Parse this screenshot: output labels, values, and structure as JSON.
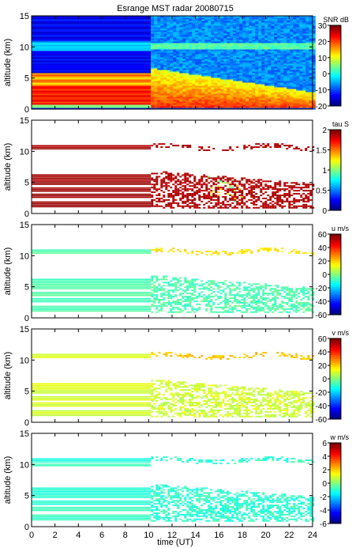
{
  "title": "Esrange MST radar 20080715",
  "x_axis": {
    "label": "time (UT)",
    "ticks": [
      "0",
      "2",
      "4",
      "6",
      "8",
      "10",
      "12",
      "14",
      "16",
      "18",
      "20",
      "22",
      "24"
    ]
  },
  "chart_data": [
    {
      "type": "heatmap",
      "title": "Esrange MST radar 20080715",
      "xlabel": "",
      "ylabel": "altitude (km)",
      "xlim": [
        0,
        24
      ],
      "ylim": [
        0,
        15
      ],
      "yticks": [
        "0",
        "5",
        "10",
        "15"
      ],
      "colorbar": {
        "label": "SNR dB",
        "range": [
          -20,
          30
        ],
        "ticks": [
          "-20",
          "-10",
          "0",
          "10",
          "20",
          "30"
        ]
      },
      "gap_at_hour": 10.2
    },
    {
      "type": "heatmap",
      "xlabel": "",
      "ylabel": "altitude (km)",
      "xlim": [
        0,
        24
      ],
      "ylim": [
        0,
        15
      ],
      "yticks": [
        "0",
        "5",
        "10",
        "15"
      ],
      "colorbar": {
        "label": "tau S",
        "range": [
          0,
          2
        ],
        "ticks": [
          "0",
          "0.5",
          "1",
          "1.5",
          "2"
        ]
      },
      "gap_at_hour": 10.2
    },
    {
      "type": "heatmap",
      "xlabel": "",
      "ylabel": "altitude (km)",
      "xlim": [
        0,
        24
      ],
      "ylim": [
        0,
        15
      ],
      "yticks": [
        "0",
        "5",
        "10",
        "15"
      ],
      "colorbar": {
        "label": "u m/s",
        "range": [
          -60,
          60
        ],
        "ticks": [
          "-60",
          "-40",
          "-20",
          "0",
          "20",
          "40",
          "60"
        ]
      },
      "gap_at_hour": 10.2
    },
    {
      "type": "heatmap",
      "xlabel": "",
      "ylabel": "altitude (km)",
      "xlim": [
        0,
        24
      ],
      "ylim": [
        0,
        15
      ],
      "yticks": [
        "0",
        "5",
        "10",
        "15"
      ],
      "colorbar": {
        "label": "v m/s",
        "range": [
          -60,
          60
        ],
        "ticks": [
          "-60",
          "-40",
          "-20",
          "0",
          "20",
          "40",
          "60"
        ]
      },
      "gap_at_hour": 10.2
    },
    {
      "type": "heatmap",
      "xlabel": "time (UT)",
      "ylabel": "altitude (km)",
      "xlim": [
        0,
        24
      ],
      "ylim": [
        0,
        15
      ],
      "yticks": [
        "0",
        "5",
        "10",
        "15"
      ],
      "colorbar": {
        "label": "w m/s",
        "range": [
          -6,
          6
        ],
        "ticks": [
          "-6",
          "-4",
          "-2",
          "0",
          "2",
          "4",
          "6"
        ]
      },
      "gap_at_hour": 10.2
    }
  ]
}
